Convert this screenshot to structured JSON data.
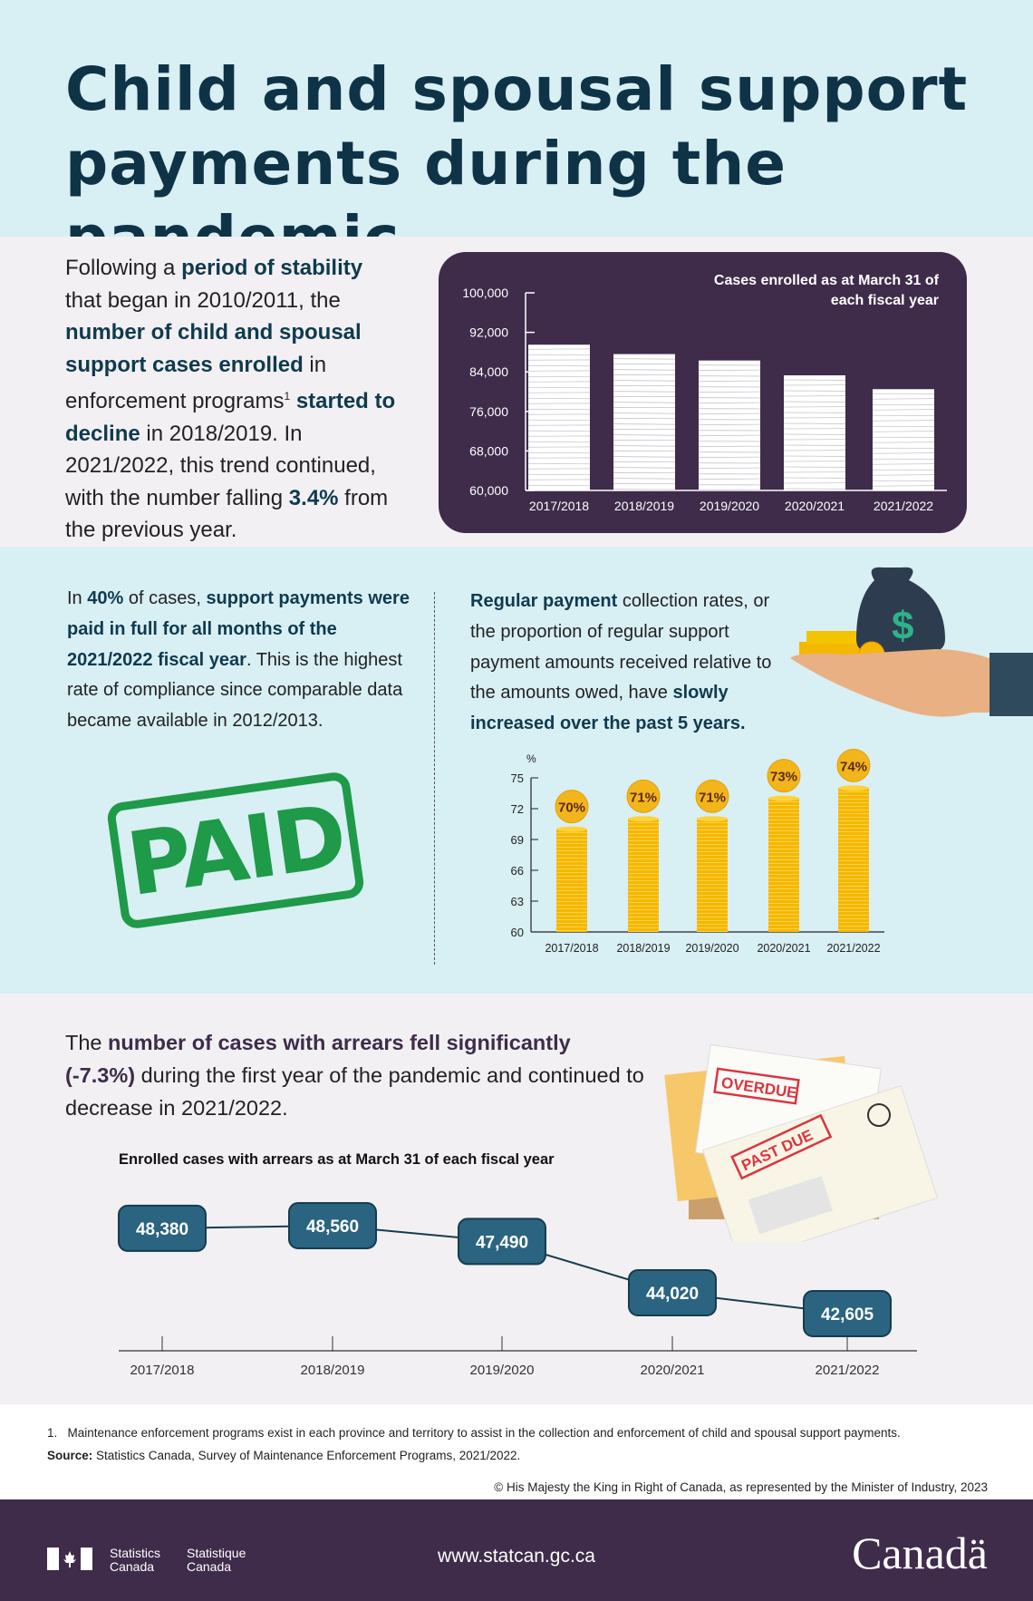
{
  "header": {
    "title_lines": [
      "Child and spousal support",
      "payments during the pandemic"
    ]
  },
  "intro": {
    "segments": [
      {
        "t": "Following a "
      },
      {
        "t": "period of stability",
        "b": true
      },
      {
        "t": " that began in 2010/2011, the "
      },
      {
        "t": "number of child and spousal support cases enrolled",
        "b": true
      },
      {
        "t": " in enforcement programs"
      },
      {
        "t": "1",
        "sup": true
      },
      {
        "t": " "
      },
      {
        "t": "started to decline",
        "b": true
      },
      {
        "t": " in 2018/2019. In 2021/2022, this trend continued, with the number falling "
      },
      {
        "t": "3.4%",
        "b": true
      },
      {
        "t": " from the previous year."
      }
    ]
  },
  "paid": {
    "segments": [
      {
        "t": "In "
      },
      {
        "t": "40%",
        "b": true
      },
      {
        "t": " of cases, "
      },
      {
        "t": "support payments were paid in full for all months of the 2021/2022 fiscal year",
        "b": true
      },
      {
        "t": ". This is the highest rate of compliance since comparable data became available in 2012/2013."
      }
    ],
    "stamp_text": "PAID",
    "stamp_color": "#1e9a48"
  },
  "collection": {
    "segments": [
      {
        "t": "Regular payment",
        "b": true
      },
      {
        "t": " collection rates, or the proportion of regular support payment amounts received relative to the amounts owed, have "
      },
      {
        "t": "slowly increased over the past 5 years.",
        "b": true
      }
    ]
  },
  "arrears": {
    "segments": [
      {
        "t": "The "
      },
      {
        "t": "number of cases with arrears fell significantly (-7.3%)",
        "b": true
      },
      {
        "t": " during the first year of the pandemic and continued to decrease in 2021/2022."
      }
    ],
    "envelope_labels": [
      "OVERDUE",
      "PAST DUE"
    ]
  },
  "chart_data": [
    {
      "type": "bar",
      "title": "Cases enrolled as at March 31 of each fiscal year",
      "title_lines": [
        "Cases enrolled as at March 31 of",
        "each fiscal year"
      ],
      "categories": [
        "2017/2018",
        "2018/2019",
        "2019/2020",
        "2020/2021",
        "2021/2022"
      ],
      "values": [
        89500,
        87600,
        86300,
        83300,
        80500
      ],
      "ylim": [
        60000,
        100000
      ],
      "yticks": [
        "60,000",
        "68,000",
        "76,000",
        "84,000",
        "92,000",
        "100,000"
      ],
      "ytick_values": [
        60000,
        68000,
        76000,
        84000,
        92000,
        100000
      ],
      "style": "paper stacks",
      "colors": {
        "bg": "#3e2c4a",
        "bar": "#ffffff"
      }
    },
    {
      "type": "bar",
      "ylabel": "%",
      "categories": [
        "2017/2018",
        "2018/2019",
        "2019/2020",
        "2020/2021",
        "2021/2022"
      ],
      "values": [
        70,
        71,
        71,
        73,
        74
      ],
      "data_labels": [
        "70%",
        "71%",
        "71%",
        "73%",
        "74%"
      ],
      "ylim": [
        60,
        75
      ],
      "yticks": [
        "60",
        "63",
        "66",
        "69",
        "72",
        "75"
      ],
      "ytick_values": [
        60,
        63,
        66,
        69,
        72,
        75
      ],
      "style": "coin stacks",
      "colors": {
        "bar": "#f5b700",
        "label_bg": "#f2b51c",
        "label_text": "#5a2a1a"
      }
    },
    {
      "type": "line",
      "title": "Enrolled cases with arrears as at March 31 of each fiscal year",
      "categories": [
        "2017/2018",
        "2018/2019",
        "2019/2020",
        "2020/2021",
        "2021/2022"
      ],
      "values": [
        48380,
        48560,
        47490,
        44020,
        42605
      ],
      "data_labels": [
        "48,380",
        "48,560",
        "47,490",
        "44,020",
        "42,605"
      ],
      "colors": {
        "box": "#2a6480",
        "line": "#163c4f"
      }
    }
  ],
  "footnotes": {
    "note_number": "1.",
    "note": "Maintenance enforcement programs exist in each province and territory to assist in the collection and enforcement of child and spousal support payments.",
    "source_label": "Source:",
    "source": " Statistics Canada, Survey of Maintenance Enforcement Programs, 2021/2022.",
    "copyright": "© His Majesty the King in Right of Canada, as represented by the Minister of Industry, 2023"
  },
  "footer": {
    "org_en": [
      "Statistics",
      "Canada"
    ],
    "org_fr": [
      "Statistique",
      "Canada"
    ],
    "url": "www.statcan.gc.ca",
    "wordmark": "Canadä"
  }
}
